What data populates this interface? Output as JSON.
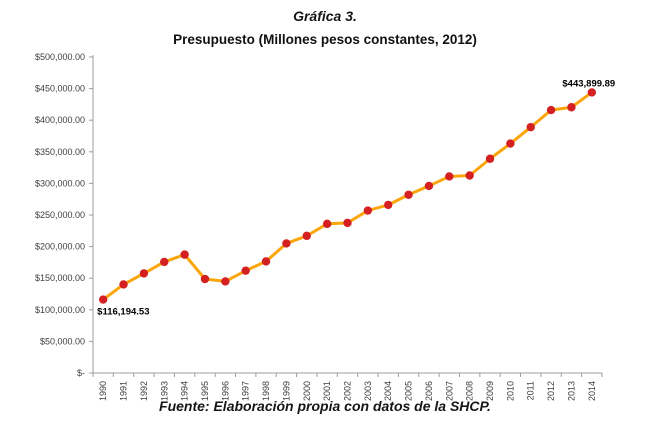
{
  "page": {
    "title": "Gráfica 3.",
    "subtitle": "Presupuesto (Millones pesos constantes, 2012)",
    "source": "Fuente: Elaboración propia con datos de la SHCP."
  },
  "chart_data": {
    "type": "line",
    "title": "Presupuesto (Millones pesos constantes, 2012)",
    "xlabel": "",
    "ylabel": "",
    "x": [
      "1990",
      "1991",
      "1992",
      "1993",
      "1994",
      "1995",
      "1996",
      "1997",
      "1998",
      "1999",
      "2000",
      "2001",
      "2002",
      "2003",
      "2004",
      "2005",
      "2006",
      "2007",
      "2008",
      "2009",
      "2010",
      "2011",
      "2012",
      "2013",
      "2014"
    ],
    "series": [
      {
        "name": "Presupuesto",
        "values": [
          116194.53,
          140100,
          157600,
          175700,
          187300,
          148700,
          144900,
          161900,
          176600,
          205000,
          217000,
          236000,
          237500,
          257000,
          266000,
          282000,
          296000,
          311000,
          312500,
          339000,
          363000,
          389000,
          416000,
          420500,
          443899.89
        ]
      }
    ],
    "ylim": [
      0,
      500000
    ],
    "y_tick_interval": 50000,
    "y_tick_labels": [
      "$-",
      "$50,000.00",
      "$100,000.00",
      "$150,000.00",
      "$200,000.00",
      "$250,000.00",
      "$300,000.00",
      "$350,000.00",
      "$400,000.00",
      "$450,000.00",
      "$500,000.00"
    ],
    "point_labels": {
      "first": "$116,194.53",
      "last": "$443,899.89"
    },
    "grid": false,
    "legend": "none",
    "colors": {
      "line": "#FCA50A",
      "marker": "#D42020",
      "axis": "#9c9c9c",
      "tick_text": "#3f3f3f",
      "label_text": "#000000"
    }
  }
}
